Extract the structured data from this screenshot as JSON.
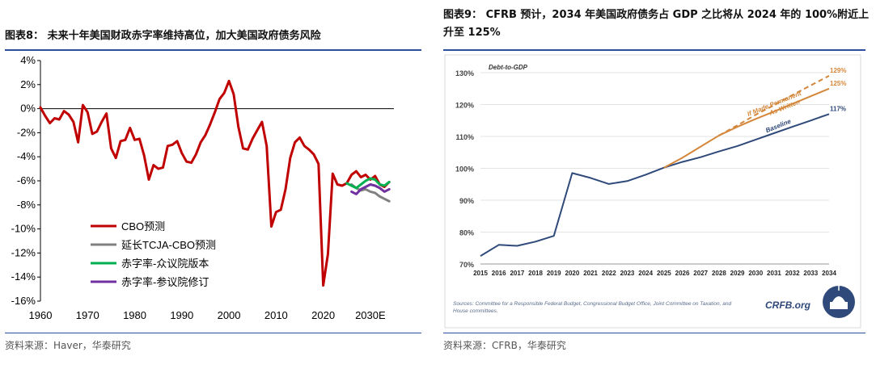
{
  "left": {
    "figure_title": "图表8：  未来十年美国财政赤字率维持高位，加大美国政府债务风险",
    "source": "资料来源：Haver，华泰研究",
    "chart_data": {
      "type": "line",
      "title": "",
      "xlabel": "",
      "ylabel": "",
      "xlim": [
        1960,
        2035
      ],
      "ylim": [
        -16,
        4
      ],
      "grid": false,
      "legend_position": "lower-left",
      "x_tick_labels": [
        "1960",
        "1970",
        "1980",
        "1990",
        "2000",
        "2010",
        "2020",
        "2030E"
      ],
      "x_tick_values": [
        1960,
        1970,
        1980,
        1990,
        2000,
        2010,
        2020,
        2030
      ],
      "y_tick_labels": [
        "4%",
        "2%",
        "0%",
        "-2%",
        "-4%",
        "-6%",
        "-8%",
        "-10%",
        "-12%",
        "-14%",
        "-16%"
      ],
      "y_tick_values": [
        4,
        2,
        0,
        -2,
        -4,
        -6,
        -8,
        -10,
        -12,
        -14,
        -16
      ],
      "series": [
        {
          "name": "CBO预测",
          "color": "#c00000",
          "x": [
            1960,
            1961,
            1962,
            1963,
            1964,
            1965,
            1966,
            1967,
            1968,
            1969,
            1970,
            1971,
            1972,
            1973,
            1974,
            1975,
            1976,
            1977,
            1978,
            1979,
            1980,
            1981,
            1982,
            1983,
            1984,
            1985,
            1986,
            1987,
            1988,
            1989,
            1990,
            1991,
            1992,
            1993,
            1994,
            1995,
            1996,
            1997,
            1998,
            1999,
            2000,
            2001,
            2002,
            2003,
            2004,
            2005,
            2006,
            2007,
            2008,
            2009,
            2010,
            2011,
            2012,
            2013,
            2014,
            2015,
            2016,
            2017,
            2018,
            2019,
            2020,
            2021,
            2022,
            2023,
            2024,
            2025,
            2026,
            2027,
            2028,
            2029,
            2030,
            2031,
            2032,
            2033,
            2034
          ],
          "y": [
            0.1,
            -0.6,
            -1.2,
            -0.8,
            -0.9,
            -0.2,
            -0.5,
            -1.1,
            -2.8,
            0.3,
            -0.3,
            -2.1,
            -1.9,
            -1.1,
            -0.4,
            -3.3,
            -4.1,
            -2.7,
            -2.6,
            -1.6,
            -2.6,
            -2.5,
            -3.9,
            -5.9,
            -4.7,
            -5.0,
            -4.9,
            -3.1,
            -3.0,
            -2.7,
            -3.7,
            -4.4,
            -4.5,
            -3.8,
            -2.8,
            -2.2,
            -1.3,
            -0.3,
            0.8,
            1.3,
            2.3,
            1.2,
            -1.5,
            -3.3,
            -3.4,
            -2.5,
            -1.8,
            -1.1,
            -3.1,
            -9.8,
            -8.6,
            -8.4,
            -6.7,
            -4.1,
            -2.8,
            -2.4,
            -3.1,
            -3.4,
            -3.8,
            -4.6,
            -14.7,
            -12.1,
            -5.4,
            -6.3,
            -6.4,
            -6.2,
            -5.5,
            -5.2,
            -5.7,
            -5.5,
            -5.9,
            -5.6,
            -6.3,
            -6.5,
            -6.1
          ]
        },
        {
          "name": "延长TCJA-CBO预测",
          "color": "#808080",
          "x": [
            2026,
            2027,
            2028,
            2029,
            2030,
            2031,
            2032,
            2033,
            2034
          ],
          "y": [
            -6.3,
            -6.6,
            -6.8,
            -6.7,
            -6.9,
            -7.0,
            -7.3,
            -7.5,
            -7.7
          ]
        },
        {
          "name": "赤字率-众议院版本",
          "color": "#00b050",
          "x": [
            2025,
            2026,
            2027,
            2028,
            2029,
            2030,
            2031,
            2032,
            2033,
            2034
          ],
          "y": [
            -6.2,
            -6.4,
            -6.6,
            -6.3,
            -6.0,
            -5.8,
            -5.9,
            -6.3,
            -6.4,
            -6.1
          ]
        },
        {
          "name": "赤字率-参议院修订",
          "color": "#7030a0",
          "x": [
            2026,
            2027,
            2028,
            2029,
            2030,
            2031,
            2032,
            2033,
            2034
          ],
          "y": [
            -6.9,
            -7.1,
            -6.7,
            -6.5,
            -6.3,
            -6.4,
            -6.6,
            -6.9,
            -6.7
          ]
        }
      ]
    }
  },
  "right": {
    "figure_title": "图表9：  CFRB 预计，2034 年美国政府债务占 GDP 之比将从 2024 年的 100%附近上升至 125%",
    "source": "资料来源：CFRB，华泰研究",
    "inner_source": "Sources: Committee for a Responsible Federal Budget, Congressional Budget Office, Joint Committee on Taxation, and House committees.",
    "logo_text": "CRFB.org",
    "chart_data": {
      "type": "line",
      "title": "Debt-to-GDP",
      "xlabel": "",
      "ylabel": "",
      "xlim": [
        2015,
        2034
      ],
      "ylim": [
        70,
        130
      ],
      "grid": true,
      "x_tick_labels": [
        "2015",
        "2016",
        "2017",
        "2018",
        "2019",
        "2020",
        "2021",
        "2022",
        "2023",
        "2024",
        "2025",
        "2026",
        "2027",
        "2028",
        "2029",
        "2030",
        "2031",
        "2032",
        "2033",
        "2034"
      ],
      "y_tick_labels": [
        "70%",
        "80%",
        "90%",
        "100%",
        "110%",
        "120%",
        "130%"
      ],
      "y_tick_values": [
        70,
        80,
        90,
        100,
        110,
        120,
        130
      ],
      "series": [
        {
          "name": "Baseline",
          "color": "#2f4a7a",
          "dashed": false,
          "end_label": "117%",
          "x": [
            2015,
            2016,
            2017,
            2018,
            2019,
            2020,
            2021,
            2022,
            2023,
            2024,
            2025,
            2026,
            2027,
            2028,
            2029,
            2030,
            2031,
            2032,
            2033,
            2034
          ],
          "y": [
            72.5,
            76.0,
            75.7,
            77.0,
            78.8,
            98.5,
            97.0,
            95.1,
            96.0,
            98.0,
            100.2,
            102.0,
            103.5,
            105.3,
            107.0,
            109.0,
            111.0,
            113.0,
            115.0,
            117.0
          ]
        },
        {
          "name": "As Written",
          "color": "#d4873a",
          "dashed": false,
          "end_label": "125%",
          "x": [
            2025,
            2026,
            2027,
            2028,
            2029,
            2030,
            2031,
            2032,
            2033,
            2034
          ],
          "y": [
            100.2,
            103.3,
            106.8,
            110.3,
            113.0,
            115.5,
            117.8,
            120.2,
            122.6,
            125.0
          ]
        },
        {
          "name": "If Made Permanent",
          "color": "#d4873a",
          "dashed": true,
          "end_label": "129%",
          "x": [
            2028,
            2029,
            2030,
            2031,
            2032,
            2033,
            2034
          ],
          "y": [
            110.3,
            113.5,
            116.8,
            119.8,
            123.0,
            126.0,
            129.0
          ]
        }
      ]
    }
  }
}
